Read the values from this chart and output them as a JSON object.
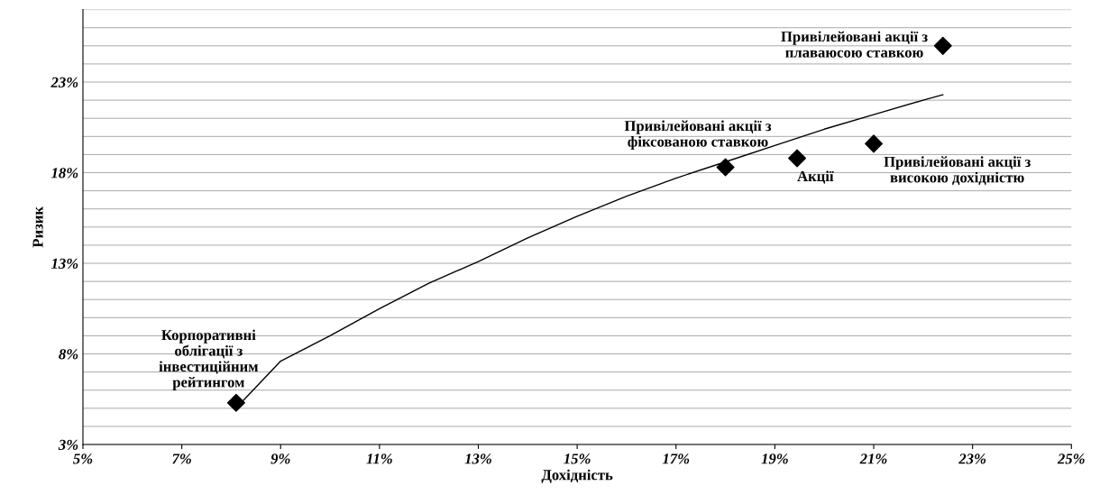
{
  "chart_data": {
    "type": "scatter",
    "xlabel": "Дохідність",
    "ylabel": "Ризик",
    "xlim": [
      5,
      25
    ],
    "xticks": [
      {
        "value": 5,
        "label": "5%"
      },
      {
        "value": 7,
        "label": "7%"
      },
      {
        "value": 9,
        "label": "9%"
      },
      {
        "value": 11,
        "label": "11%"
      },
      {
        "value": 13,
        "label": "13%"
      },
      {
        "value": 15,
        "label": "15%"
      },
      {
        "value": 17,
        "label": "17%"
      },
      {
        "value": 19,
        "label": "19%"
      },
      {
        "value": 21,
        "label": "21%"
      },
      {
        "value": 23,
        "label": "23%"
      },
      {
        "value": 25,
        "label": "25%"
      }
    ],
    "ylim": [
      3,
      27
    ],
    "yticks": [
      {
        "value": 3,
        "label": "3%"
      },
      {
        "value": 4,
        "label": null
      },
      {
        "value": 5,
        "label": null
      },
      {
        "value": 6,
        "label": null
      },
      {
        "value": 7,
        "label": null
      },
      {
        "value": 8,
        "label": "8%"
      },
      {
        "value": 9,
        "label": null
      },
      {
        "value": 10,
        "label": null
      },
      {
        "value": 11,
        "label": null
      },
      {
        "value": 12,
        "label": null
      },
      {
        "value": 13,
        "label": "13%"
      },
      {
        "value": 14,
        "label": null
      },
      {
        "value": 15,
        "label": null
      },
      {
        "value": 16,
        "label": null
      },
      {
        "value": 17,
        "label": null
      },
      {
        "value": 18,
        "label": "18%"
      },
      {
        "value": 19,
        "label": null
      },
      {
        "value": 20,
        "label": null
      },
      {
        "value": 21,
        "label": null
      },
      {
        "value": 22,
        "label": null
      },
      {
        "value": 23,
        "label": "23%"
      },
      {
        "value": 24,
        "label": null
      },
      {
        "value": 25,
        "label": null
      },
      {
        "value": 26,
        "label": null
      },
      {
        "value": 27,
        "label": null
      }
    ],
    "grid": "y",
    "legend": false,
    "series": [
      {
        "type": "line",
        "color": "#000000",
        "marker": "none",
        "line_style": "solid",
        "x": [
          8.2,
          9,
          10,
          11,
          12,
          13,
          14,
          15,
          16,
          17,
          18,
          19,
          20,
          21,
          22,
          22.4
        ],
        "values": [
          5.3,
          7.6,
          9.0,
          10.5,
          11.9,
          13.1,
          14.4,
          15.6,
          16.7,
          17.7,
          18.6,
          19.5,
          20.4,
          21.2,
          22.0,
          22.3
        ]
      },
      {
        "color": "#000000",
        "marker": "diamond",
        "x": [
          8.1,
          18.0,
          19.45,
          21.0,
          22.4
        ],
        "values": [
          5.3,
          18.3,
          18.8,
          19.6,
          25.0
        ]
      }
    ],
    "annotations": [
      {
        "text": "Корпоративні\nоблігації з\nінвестиційним\nрейтингом",
        "x": 8.1,
        "y": 5.3
      },
      {
        "text": "Привілейовані акції з\nфіксованою ставкою",
        "x": 18.0,
        "y": 18.3
      },
      {
        "text": "Акції",
        "x": 19.45,
        "y": 18.8
      },
      {
        "text": "Привілейовані акції з\nвисокою дохідністю",
        "x": 21.0,
        "y": 19.6
      },
      {
        "text": "Привілейовані акції з\nплаваюсою ставкою",
        "x": 22.4,
        "y": 25.0
      }
    ]
  }
}
